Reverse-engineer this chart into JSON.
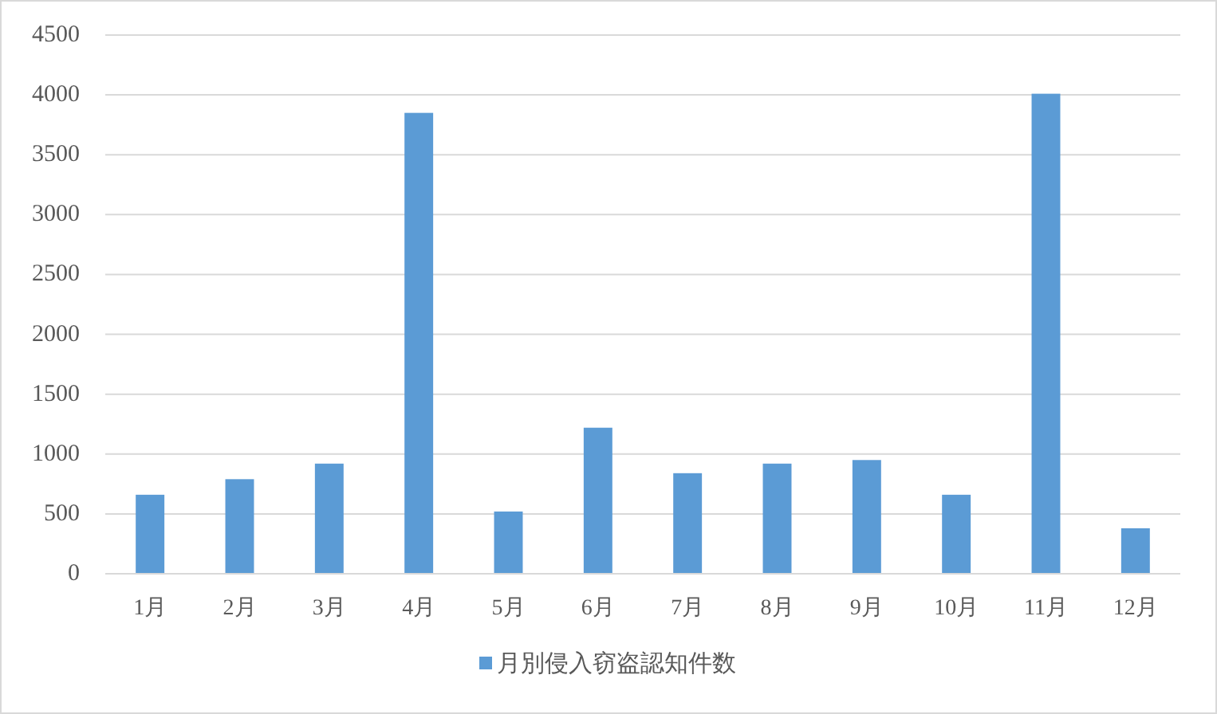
{
  "chart_data": {
    "type": "bar",
    "categories": [
      "1月",
      "2月",
      "3月",
      "4月",
      "5月",
      "6月",
      "7月",
      "8月",
      "9月",
      "10月",
      "11月",
      "12月"
    ],
    "series": [
      {
        "name": "月別侵入窃盗認知件数",
        "color": "#5b9bd5",
        "values": [
          660,
          790,
          920,
          3850,
          520,
          1220,
          840,
          920,
          950,
          660,
          4010,
          380
        ]
      }
    ],
    "ylim": [
      0,
      4500
    ],
    "yticks": [
      0,
      500,
      1000,
      1500,
      2000,
      2500,
      3000,
      3500,
      4000,
      4500
    ],
    "grid": "y",
    "legend": "bottom"
  }
}
